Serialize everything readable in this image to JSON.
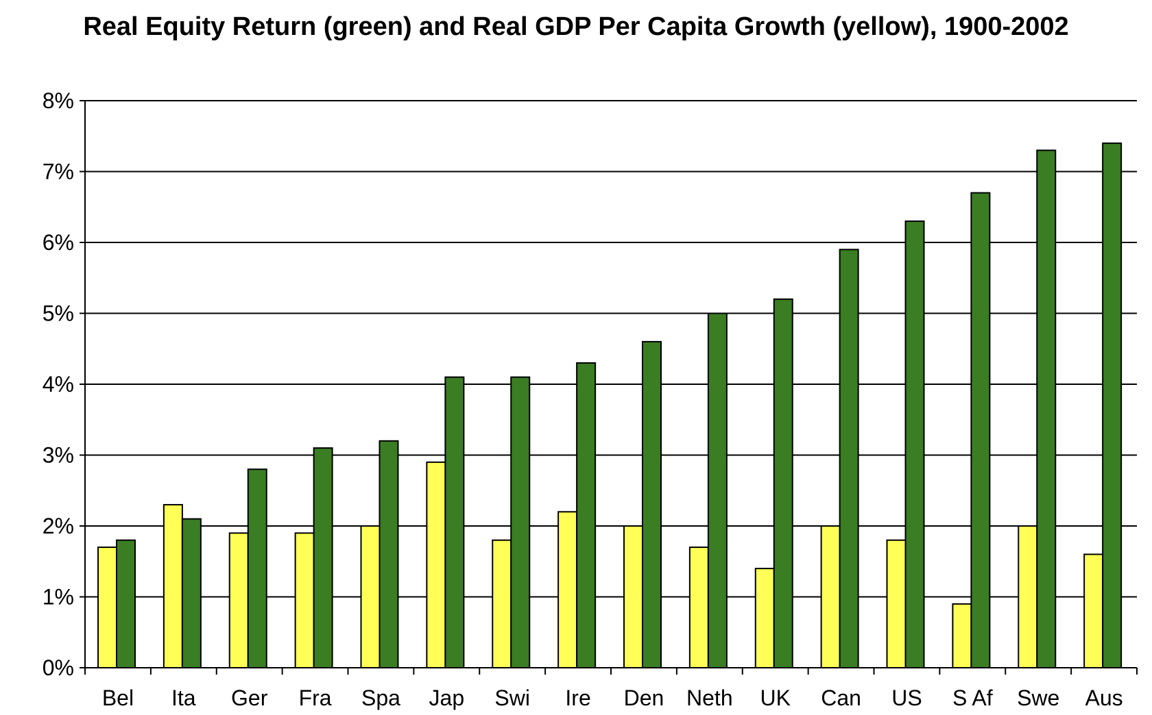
{
  "chart_data": {
    "type": "bar",
    "title": "Real Equity Return (green) and Real GDP Per Capita Growth (yellow), 1900-2002",
    "xlabel": "",
    "ylabel": "",
    "categories": [
      "Bel",
      "Ita",
      "Ger",
      "Fra",
      "Spa",
      "Jap",
      "Swi",
      "Ire",
      "Den",
      "Neth",
      "UK",
      "Can",
      "US",
      "S Af",
      "Swe",
      "Aus"
    ],
    "series": [
      {
        "color": "#ffff57",
        "values": [
          1.7,
          2.3,
          1.9,
          1.9,
          2.0,
          2.9,
          1.8,
          2.2,
          2.0,
          1.7,
          1.4,
          2.0,
          1.8,
          0.9,
          2.0,
          1.6
        ]
      },
      {
        "color": "#3a7d23",
        "values": [
          1.8,
          2.1,
          2.8,
          3.1,
          3.2,
          4.1,
          4.1,
          4.3,
          4.6,
          5.0,
          5.2,
          5.9,
          6.3,
          6.7,
          7.3,
          7.4
        ]
      }
    ],
    "ylim": [
      0,
      8
    ],
    "yticks": [
      "0%",
      "1%",
      "2%",
      "3%",
      "4%",
      "5%",
      "6%",
      "7%",
      "8%"
    ],
    "grid": true,
    "legend": "none"
  }
}
